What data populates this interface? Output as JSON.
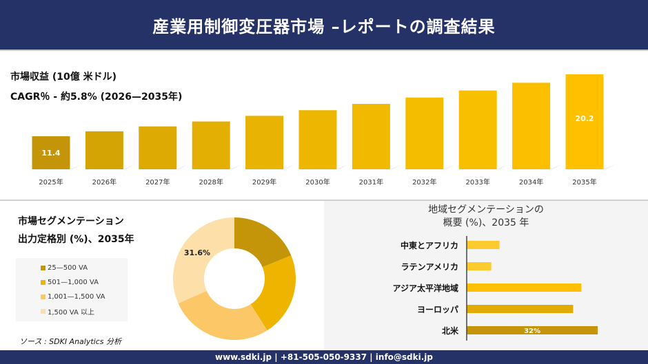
{
  "header": {
    "title": "産業用制御変圧器市場 –レポートの調査結果"
  },
  "revenue": {
    "title": "市場収益 (10億 米ドル)",
    "cagr": "CAGR％ - 約5.8% (2026—2035年)"
  },
  "segment": {
    "title": "市場セグメンテーション",
    "subtitle": "出力定格別 (%)、2035年"
  },
  "region": {
    "title1": "地域セグメンテーションの",
    "title2": "概要 (%)、2035 年"
  },
  "source": "ソース : SDKI Analytics 分析",
  "footer": "www.sdki.jp | +81-505-050-9337 | info@sdki.jp",
  "chart_data": [
    {
      "type": "bar",
      "categories": [
        "2025年",
        "2026年",
        "2027年",
        "2028年",
        "2029年",
        "2030年",
        "2031年",
        "2032年",
        "2033年",
        "2034年",
        "2035年"
      ],
      "values": [
        11.4,
        12.1,
        12.8,
        13.5,
        14.3,
        15.1,
        16.0,
        16.9,
        17.9,
        19.0,
        20.2
      ],
      "data_labels": {
        "0": "11.4",
        "10": "20.2"
      },
      "colors": [
        "#c49508",
        "#d4a404",
        "#dcaa03",
        "#e3af02",
        "#e8b302",
        "#edb701",
        "#f1ba01",
        "#f5bd00",
        "#f8be00",
        "#fbbf00",
        "#ffc000"
      ]
    },
    {
      "type": "pie",
      "donut": true,
      "labels": [
        "25—500 VA",
        "501—1,000 VA",
        "1,001—1,500 VA",
        "1,500 VA 以上"
      ],
      "values": [
        18.8,
        22.2,
        27.4,
        31.6
      ],
      "data_labels": {
        "3": "31.6%"
      },
      "colors": [
        "#c49508",
        "#eeb400",
        "#fcc867",
        "#fddfa9"
      ]
    },
    {
      "type": "bar",
      "orientation": "horizontal",
      "categories": [
        "中東とアフリカ",
        "ラテンアメリカ",
        "アジア太平洋地域",
        "ヨーロッパ",
        "北米"
      ],
      "values": [
        8,
        6,
        28,
        26,
        32
      ],
      "data_labels": {
        "4": "32%"
      },
      "colors": [
        "#fdca30",
        "#fdca30",
        "#ffc000",
        "#e1ab04",
        "#c49508"
      ]
    }
  ]
}
